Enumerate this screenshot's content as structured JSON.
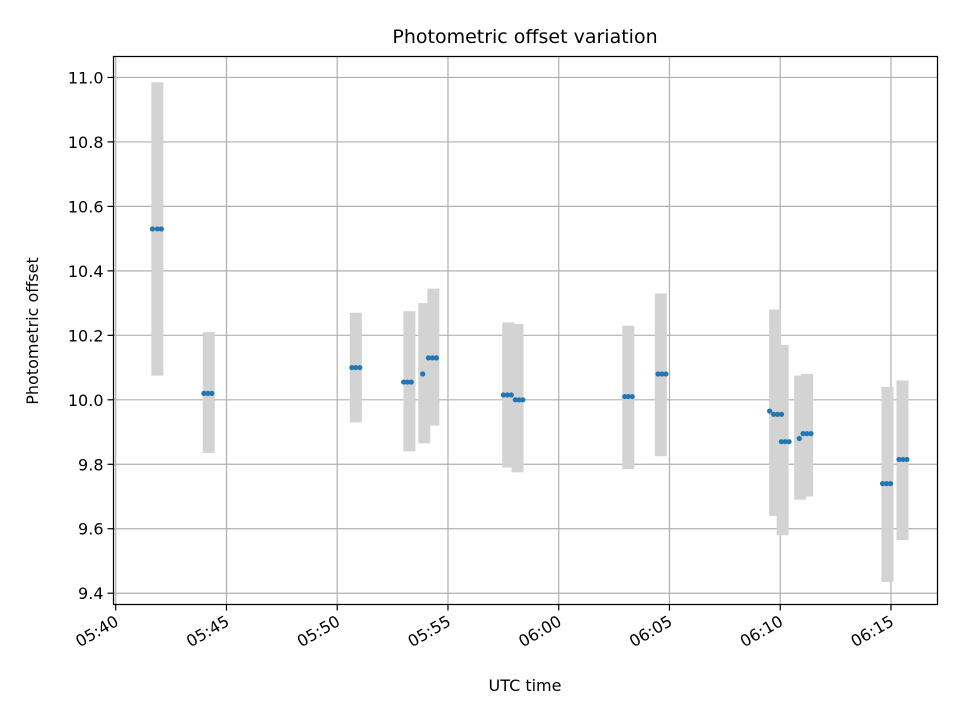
{
  "chart_data": {
    "type": "scatter",
    "title": "Photometric offset variation",
    "xlabel": "UTC time",
    "ylabel": "Photometric offset",
    "grid": true,
    "xlim_minutes": [
      339.9,
      377.1
    ],
    "ylim": [
      9.365,
      11.065
    ],
    "x_ticks": [
      {
        "label": "05:40",
        "minutes": 340
      },
      {
        "label": "05:45",
        "minutes": 345
      },
      {
        "label": "05:50",
        "minutes": 350
      },
      {
        "label": "05:55",
        "minutes": 355
      },
      {
        "label": "06:00",
        "minutes": 360
      },
      {
        "label": "06:05",
        "minutes": 365
      },
      {
        "label": "06:10",
        "minutes": 370
      },
      {
        "label": "06:15",
        "minutes": 375
      }
    ],
    "y_ticks": [
      9.4,
      9.6,
      9.8,
      10.0,
      10.2,
      10.4,
      10.6,
      10.8,
      11.0
    ],
    "y_tick_labels": [
      "9.4",
      "9.6",
      "9.8",
      "10.0",
      "10.2",
      "10.4",
      "10.6",
      "10.8",
      "11.0"
    ],
    "error_bars": [
      {
        "x": 341.88,
        "low": 10.075,
        "high": 10.985
      },
      {
        "x": 344.2,
        "low": 9.835,
        "high": 10.21
      },
      {
        "x": 350.84,
        "low": 9.93,
        "high": 10.27
      },
      {
        "x": 353.26,
        "low": 9.84,
        "high": 10.275
      },
      {
        "x": 353.93,
        "low": 9.865,
        "high": 10.3
      },
      {
        "x": 354.34,
        "low": 9.92,
        "high": 10.345
      },
      {
        "x": 357.72,
        "low": 9.79,
        "high": 10.24
      },
      {
        "x": 358.14,
        "low": 9.775,
        "high": 10.235
      },
      {
        "x": 363.14,
        "low": 9.785,
        "high": 10.23
      },
      {
        "x": 364.61,
        "low": 9.825,
        "high": 10.33
      },
      {
        "x": 369.77,
        "low": 9.64,
        "high": 10.28
      },
      {
        "x": 370.11,
        "low": 9.58,
        "high": 10.17
      },
      {
        "x": 370.9,
        "low": 9.69,
        "high": 10.075
      },
      {
        "x": 371.21,
        "low": 9.7,
        "high": 10.08
      },
      {
        "x": 374.84,
        "low": 9.435,
        "high": 10.04
      },
      {
        "x": 375.52,
        "low": 9.565,
        "high": 10.06
      }
    ],
    "points": [
      {
        "x": 341.66,
        "y": 10.53
      },
      {
        "x": 341.88,
        "y": 10.53
      },
      {
        "x": 342.06,
        "y": 10.53
      },
      {
        "x": 343.98,
        "y": 10.02
      },
      {
        "x": 344.16,
        "y": 10.02
      },
      {
        "x": 344.34,
        "y": 10.02
      },
      {
        "x": 350.66,
        "y": 10.1
      },
      {
        "x": 350.84,
        "y": 10.1
      },
      {
        "x": 351.02,
        "y": 10.1
      },
      {
        "x": 353.0,
        "y": 10.055
      },
      {
        "x": 353.17,
        "y": 10.055
      },
      {
        "x": 353.34,
        "y": 10.055
      },
      {
        "x": 353.86,
        "y": 10.08
      },
      {
        "x": 354.12,
        "y": 10.13
      },
      {
        "x": 354.3,
        "y": 10.13
      },
      {
        "x": 354.48,
        "y": 10.13
      },
      {
        "x": 357.5,
        "y": 10.015
      },
      {
        "x": 357.68,
        "y": 10.015
      },
      {
        "x": 357.86,
        "y": 10.015
      },
      {
        "x": 358.04,
        "y": 10.0
      },
      {
        "x": 358.21,
        "y": 10.0
      },
      {
        "x": 358.38,
        "y": 10.0
      },
      {
        "x": 362.98,
        "y": 10.01
      },
      {
        "x": 363.14,
        "y": 10.01
      },
      {
        "x": 363.32,
        "y": 10.01
      },
      {
        "x": 364.48,
        "y": 10.08
      },
      {
        "x": 364.66,
        "y": 10.08
      },
      {
        "x": 364.84,
        "y": 10.08
      },
      {
        "x": 369.52,
        "y": 9.965
      },
      {
        "x": 369.7,
        "y": 9.955
      },
      {
        "x": 369.88,
        "y": 9.955
      },
      {
        "x": 370.06,
        "y": 9.955
      },
      {
        "x": 370.05,
        "y": 9.87
      },
      {
        "x": 370.22,
        "y": 9.87
      },
      {
        "x": 370.4,
        "y": 9.87
      },
      {
        "x": 370.86,
        "y": 9.88
      },
      {
        "x": 371.03,
        "y": 9.895
      },
      {
        "x": 371.21,
        "y": 9.895
      },
      {
        "x": 371.39,
        "y": 9.895
      },
      {
        "x": 374.62,
        "y": 9.74
      },
      {
        "x": 374.8,
        "y": 9.74
      },
      {
        "x": 374.98,
        "y": 9.74
      },
      {
        "x": 375.36,
        "y": 9.815
      },
      {
        "x": 375.54,
        "y": 9.815
      },
      {
        "x": 375.72,
        "y": 9.815
      }
    ],
    "colors": {
      "point": "#1f77b4",
      "error_bar": "#d3d3d3",
      "grid": "#b0b0b0",
      "axis": "#000000"
    }
  }
}
